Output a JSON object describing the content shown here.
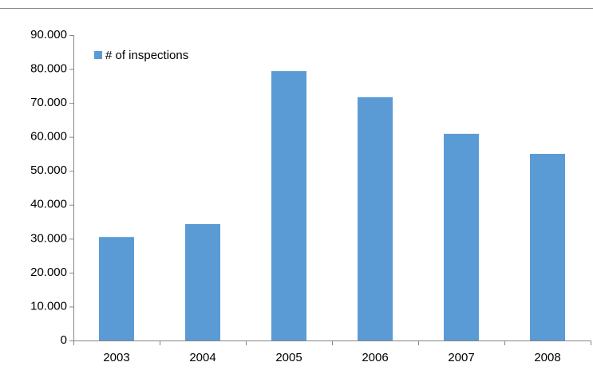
{
  "chart_data": {
    "type": "bar",
    "categories": [
      "2003",
      "2004",
      "2005",
      "2006",
      "2007",
      "2008"
    ],
    "series": [
      {
        "name": "# of inspections",
        "color": "#5b9bd5",
        "values": [
          30500,
          34300,
          79400,
          71700,
          60900,
          55000
        ]
      }
    ],
    "ylim": [
      0,
      90000
    ],
    "yticks": [
      0,
      {
        "value": 10000,
        "label": "10.000"
      },
      {
        "value": 20000,
        "label": "20.000"
      },
      {
        "value": 30000,
        "label": "30.000"
      },
      {
        "value": 40000,
        "label": "40.000"
      },
      {
        "value": 50000,
        "label": "50.000"
      },
      {
        "value": 60000,
        "label": "60.000"
      },
      {
        "value": 70000,
        "label": "70.000"
      },
      {
        "value": 80000,
        "label": "80.000"
      },
      {
        "value": 90000,
        "label": "90.000"
      }
    ],
    "grid": false,
    "legend": "top-left"
  }
}
